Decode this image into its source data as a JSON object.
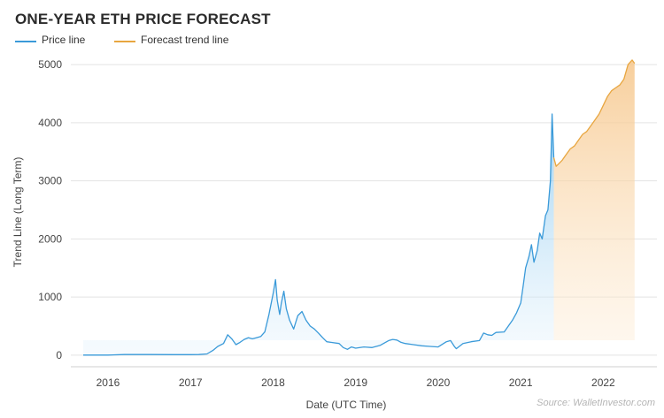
{
  "header": {
    "title": "ONE-YEAR ETH PRICE FORECAST",
    "source": "Source: WalletInvestor.com"
  },
  "legend": [
    {
      "name": "Price line",
      "color": "#3a9ad9"
    },
    {
      "name": "Forecast trend line",
      "color": "#e8a640"
    }
  ],
  "chart_data": {
    "type": "line",
    "title": "ONE-YEAR ETH PRICE FORECAST",
    "xlabel": "Date (UTC Time)",
    "ylabel": "Trend Line (Long Term)",
    "ylim": [
      -200,
      5200
    ],
    "xlim": [
      2015.55,
      2022.65
    ],
    "x_ticks": [
      2016,
      2017,
      2018,
      2019,
      2020,
      2021,
      2022
    ],
    "x_tick_labels": [
      "2016",
      "2017",
      "2018",
      "2019",
      "2020",
      "2021",
      "2022"
    ],
    "y_ticks": [
      0,
      1000,
      2000,
      3000,
      4000,
      5000
    ],
    "y_tick_labels": [
      "0",
      "1000",
      "2000",
      "3000",
      "4000",
      "5000"
    ],
    "grid": true,
    "legend_position": "top-left",
    "series": [
      {
        "name": "Price line",
        "color": "#3a9ad9",
        "x": [
          2015.7,
          2016.0,
          2016.2,
          2016.5,
          2016.8,
          2017.0,
          2017.1,
          2017.2,
          2017.27,
          2017.33,
          2017.4,
          2017.45,
          2017.5,
          2017.55,
          2017.6,
          2017.65,
          2017.7,
          2017.75,
          2017.8,
          2017.85,
          2017.9,
          2017.95,
          2018.0,
          2018.03,
          2018.05,
          2018.08,
          2018.1,
          2018.13,
          2018.16,
          2018.2,
          2018.25,
          2018.3,
          2018.35,
          2018.4,
          2018.45,
          2018.5,
          2018.55,
          2018.6,
          2018.65,
          2018.7,
          2018.8,
          2018.85,
          2018.9,
          2018.95,
          2019.0,
          2019.1,
          2019.2,
          2019.3,
          2019.4,
          2019.45,
          2019.5,
          2019.55,
          2019.6,
          2019.7,
          2019.8,
          2019.9,
          2020.0,
          2020.1,
          2020.15,
          2020.2,
          2020.22,
          2020.3,
          2020.4,
          2020.5,
          2020.55,
          2020.6,
          2020.65,
          2020.7,
          2020.8,
          2020.9,
          2020.95,
          2021.0,
          2021.03,
          2021.06,
          2021.1,
          2021.13,
          2021.16,
          2021.2,
          2021.23,
          2021.26,
          2021.3,
          2021.33,
          2021.36,
          2021.38,
          2021.4
        ],
        "y": [
          1,
          1,
          10,
          10,
          8,
          8,
          10,
          20,
          80,
          150,
          200,
          350,
          280,
          180,
          220,
          270,
          300,
          280,
          300,
          320,
          400,
          700,
          1050,
          1300,
          950,
          700,
          900,
          1100,
          800,
          600,
          450,
          680,
          750,
          600,
          500,
          450,
          380,
          300,
          230,
          220,
          200,
          130,
          100,
          140,
          120,
          140,
          130,
          170,
          250,
          270,
          260,
          220,
          200,
          180,
          160,
          150,
          140,
          230,
          250,
          140,
          110,
          200,
          230,
          250,
          380,
          350,
          340,
          390,
          400,
          600,
          730,
          900,
          1200,
          1500,
          1700,
          1900,
          1600,
          1800,
          2100,
          2000,
          2400,
          2500,
          3000,
          4150,
          3400
        ]
      },
      {
        "name": "Forecast trend line",
        "color": "#e8a640",
        "x": [
          2021.4,
          2021.43,
          2021.5,
          2021.55,
          2021.6,
          2021.65,
          2021.7,
          2021.75,
          2021.8,
          2021.85,
          2021.9,
          2021.95,
          2022.0,
          2022.05,
          2022.1,
          2022.15,
          2022.2,
          2022.25,
          2022.3,
          2022.33,
          2022.35,
          2022.38
        ],
        "y": [
          3400,
          3250,
          3350,
          3450,
          3550,
          3600,
          3700,
          3800,
          3850,
          3950,
          4050,
          4150,
          4300,
          4450,
          4550,
          4600,
          4650,
          4750,
          5000,
          5050,
          5080,
          5020
        ]
      }
    ]
  }
}
